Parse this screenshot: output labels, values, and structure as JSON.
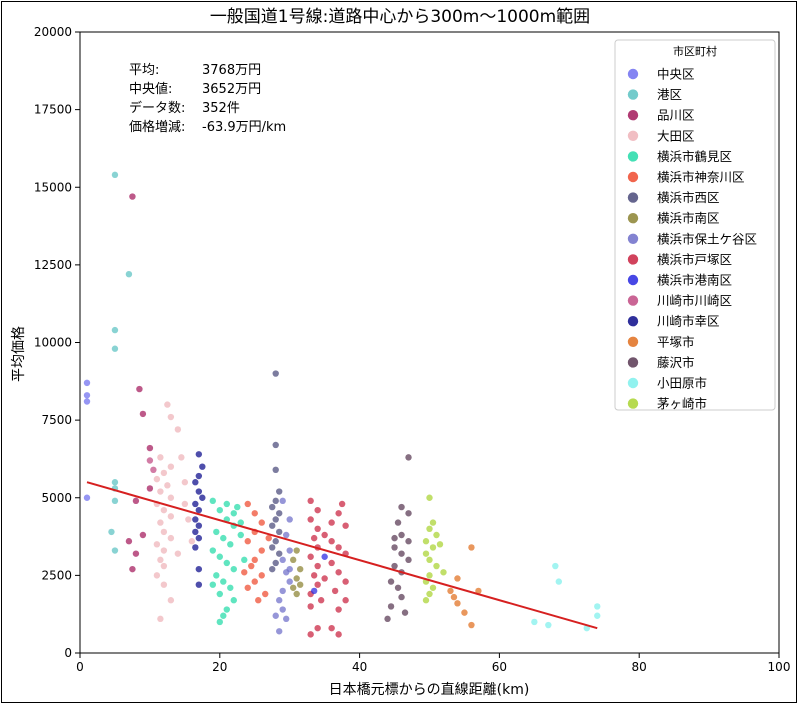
{
  "chart_data": {
    "type": "scatter",
    "title": "一般国道1号線:道路中心から300m～1000m範囲",
    "xlabel": "日本橋元標からの直線距離(km)",
    "ylabel": "平均価格",
    "xlim": [
      0,
      100
    ],
    "ylim": [
      0,
      20000
    ],
    "xticks": [
      0,
      20,
      40,
      60,
      80,
      100
    ],
    "yticks": [
      0,
      2500,
      5000,
      7500,
      10000,
      12500,
      15000,
      17500,
      20000
    ],
    "grid": false,
    "legend_title": "市区町村",
    "legend_position": "top-right",
    "stats": [
      {
        "label": "平均:",
        "value": "3768万円"
      },
      {
        "label": "中央値:",
        "value": "3652万円"
      },
      {
        "label": "データ数:",
        "value": "352件"
      },
      {
        "label": "価格増減:",
        "value": "-63.9万円/km"
      }
    ],
    "trendline": {
      "color": "#d62020",
      "x": [
        1,
        74
      ],
      "y": [
        5500,
        800
      ]
    },
    "series": [
      {
        "name": "中央区",
        "color": "#6e6ef0",
        "points": [
          [
            1,
            8700
          ],
          [
            1,
            8300
          ],
          [
            1,
            8100
          ],
          [
            1,
            5000
          ]
        ]
      },
      {
        "name": "港区",
        "color": "#5bc2c2",
        "points": [
          [
            5,
            15400
          ],
          [
            7,
            12200
          ],
          [
            5,
            10400
          ],
          [
            5,
            9800
          ],
          [
            5,
            5500
          ],
          [
            5,
            5300
          ],
          [
            5,
            4900
          ],
          [
            4.5,
            3900
          ],
          [
            5,
            3300
          ]
        ]
      },
      {
        "name": "品川区",
        "color": "#a3195b",
        "points": [
          [
            7.5,
            14700
          ],
          [
            8.5,
            8500
          ],
          [
            9,
            7700
          ],
          [
            10,
            6600
          ],
          [
            10,
            5300
          ],
          [
            8,
            4900
          ],
          [
            9,
            3800
          ],
          [
            7,
            3600
          ],
          [
            8,
            3200
          ],
          [
            7.5,
            2700
          ]
        ]
      },
      {
        "name": "大田区",
        "color": "#efb3b8",
        "points": [
          [
            12.5,
            8000
          ],
          [
            13,
            7600
          ],
          [
            14,
            7200
          ],
          [
            11.5,
            6300
          ],
          [
            13,
            6000
          ],
          [
            12,
            5800
          ],
          [
            11,
            5600
          ],
          [
            12.5,
            5400
          ],
          [
            11.5,
            5200
          ],
          [
            13,
            5000
          ],
          [
            11,
            4800
          ],
          [
            12,
            4600
          ],
          [
            13,
            4400
          ],
          [
            11.5,
            4200
          ],
          [
            12,
            3900
          ],
          [
            13,
            3700
          ],
          [
            11,
            3500
          ],
          [
            12,
            3300
          ],
          [
            11.5,
            3000
          ],
          [
            12,
            2800
          ],
          [
            11,
            2500
          ],
          [
            12,
            2200
          ],
          [
            13,
            1700
          ],
          [
            11.5,
            1100
          ],
          [
            15,
            4800
          ],
          [
            15.5,
            4300
          ],
          [
            16,
            3600
          ],
          [
            14,
            3200
          ],
          [
            15,
            5500
          ],
          [
            14.5,
            6300
          ]
        ]
      },
      {
        "name": "横浜市鶴見区",
        "color": "#23dba8",
        "points": [
          [
            19,
            4900
          ],
          [
            20,
            4600
          ],
          [
            21,
            4300
          ],
          [
            22,
            4100
          ],
          [
            19.5,
            3900
          ],
          [
            20.5,
            3700
          ],
          [
            21.5,
            3500
          ],
          [
            19,
            3300
          ],
          [
            20,
            3100
          ],
          [
            21,
            2900
          ],
          [
            22,
            2700
          ],
          [
            19.5,
            2500
          ],
          [
            20.5,
            2300
          ],
          [
            21.5,
            2100
          ],
          [
            20,
            1900
          ],
          [
            22,
            1700
          ],
          [
            21,
            1400
          ],
          [
            20.5,
            1200
          ],
          [
            20,
            1000
          ],
          [
            22.5,
            4700
          ],
          [
            23,
            4200
          ],
          [
            23,
            3800
          ],
          [
            23.5,
            3000
          ],
          [
            19,
            2200
          ],
          [
            21,
            4800
          ],
          [
            22,
            4500
          ]
        ]
      },
      {
        "name": "横浜市神奈川区",
        "color": "#ef4a2e",
        "points": [
          [
            24,
            4800
          ],
          [
            25,
            4500
          ],
          [
            26,
            4200
          ],
          [
            25,
            3900
          ],
          [
            24,
            3600
          ],
          [
            26,
            3300
          ],
          [
            25,
            3000
          ],
          [
            24.5,
            2800
          ],
          [
            26,
            2500
          ],
          [
            25,
            2300
          ],
          [
            24,
            2100
          ],
          [
            26.5,
            1900
          ],
          [
            25.5,
            1700
          ],
          [
            27,
            3700
          ],
          [
            23.5,
            2600
          ]
        ]
      },
      {
        "name": "横浜市西区",
        "color": "#4a4a7a",
        "points": [
          [
            28,
            9000
          ],
          [
            28,
            6700
          ],
          [
            28,
            5900
          ],
          [
            28.5,
            5200
          ],
          [
            28,
            4900
          ],
          [
            27.5,
            4700
          ],
          [
            28.5,
            4500
          ],
          [
            28,
            4300
          ],
          [
            27.5,
            4100
          ],
          [
            28.5,
            3900
          ],
          [
            28,
            3600
          ],
          [
            27.5,
            3400
          ],
          [
            28.5,
            3200
          ],
          [
            28,
            2900
          ],
          [
            27.5,
            2700
          ]
        ]
      },
      {
        "name": "横浜市南区",
        "color": "#8b8231",
        "points": [
          [
            31,
            3300
          ],
          [
            30.5,
            3000
          ],
          [
            31.5,
            2700
          ],
          [
            31,
            2400
          ],
          [
            30.5,
            2100
          ],
          [
            31,
            1900
          ],
          [
            31.5,
            2200
          ]
        ]
      },
      {
        "name": "横浜市保土ケ谷区",
        "color": "#6d6dc9",
        "points": [
          [
            29,
            4900
          ],
          [
            30,
            4300
          ],
          [
            29.5,
            3800
          ],
          [
            30,
            3300
          ],
          [
            29,
            3000
          ],
          [
            29.5,
            2600
          ],
          [
            30,
            2300
          ],
          [
            29,
            2000
          ],
          [
            28.5,
            1700
          ],
          [
            29,
            1400
          ],
          [
            28,
            1200
          ],
          [
            29.5,
            1100
          ],
          [
            28.5,
            700
          ],
          [
            30,
            2700
          ]
        ]
      },
      {
        "name": "横浜市戸塚区",
        "color": "#c9213f",
        "points": [
          [
            33,
            4900
          ],
          [
            34,
            4600
          ],
          [
            33,
            4300
          ],
          [
            34,
            4000
          ],
          [
            33.5,
            3700
          ],
          [
            34,
            3400
          ],
          [
            33,
            3100
          ],
          [
            34,
            2800
          ],
          [
            33.5,
            2500
          ],
          [
            34,
            2200
          ],
          [
            33,
            1900
          ],
          [
            34.5,
            1700
          ],
          [
            33,
            1500
          ],
          [
            34,
            800
          ],
          [
            33,
            600
          ],
          [
            36,
            4200
          ],
          [
            37,
            4500
          ],
          [
            37.5,
            4800
          ],
          [
            38,
            4100
          ],
          [
            36,
            3600
          ],
          [
            37,
            3400
          ],
          [
            38,
            3200
          ],
          [
            36,
            2900
          ],
          [
            37,
            2600
          ],
          [
            38,
            2300
          ],
          [
            36.5,
            2000
          ],
          [
            38,
            1700
          ],
          [
            37,
            1400
          ],
          [
            36,
            800
          ],
          [
            37,
            600
          ],
          [
            35,
            3800
          ],
          [
            35,
            2400
          ]
        ]
      },
      {
        "name": "横浜市港南区",
        "color": "#2727e0",
        "points": [
          [
            35,
            3100
          ],
          [
            33.5,
            2000
          ]
        ]
      },
      {
        "name": "川崎市川崎区",
        "color": "#c14a82",
        "points": [
          [
            10,
            6200
          ],
          [
            10.5,
            5900
          ]
        ]
      },
      {
        "name": "川崎市幸区",
        "color": "#0a0a8a",
        "points": [
          [
            17,
            6400
          ],
          [
            17.5,
            6000
          ],
          [
            17,
            5700
          ],
          [
            16.5,
            5500
          ],
          [
            17,
            5200
          ],
          [
            17.5,
            5000
          ],
          [
            16.5,
            4800
          ],
          [
            17,
            4600
          ],
          [
            16.5,
            4300
          ],
          [
            17,
            4100
          ],
          [
            16.5,
            3900
          ],
          [
            17,
            3700
          ],
          [
            16.5,
            3400
          ],
          [
            17,
            2700
          ],
          [
            17,
            2200
          ]
        ]
      },
      {
        "name": "平塚市",
        "color": "#e06f1f",
        "points": [
          [
            56,
            3400
          ],
          [
            54,
            2400
          ],
          [
            53,
            2000
          ],
          [
            53.5,
            1800
          ],
          [
            54,
            1600
          ],
          [
            55,
            1300
          ],
          [
            56,
            900
          ],
          [
            57,
            2000
          ]
        ]
      },
      {
        "name": "藤沢市",
        "color": "#583752",
        "points": [
          [
            47,
            6300
          ],
          [
            46,
            4700
          ],
          [
            47,
            4500
          ],
          [
            45.5,
            4200
          ],
          [
            46,
            3800
          ],
          [
            47,
            3600
          ],
          [
            45,
            3400
          ],
          [
            46,
            3200
          ],
          [
            47,
            3000
          ],
          [
            45,
            2800
          ],
          [
            46,
            2600
          ],
          [
            44.5,
            2300
          ],
          [
            45.5,
            2100
          ],
          [
            46,
            1800
          ],
          [
            44.5,
            1500
          ],
          [
            46.5,
            1300
          ],
          [
            44,
            1100
          ],
          [
            45,
            3700
          ]
        ]
      },
      {
        "name": "小田原市",
        "color": "#7ef0ec",
        "points": [
          [
            68,
            2800
          ],
          [
            68.5,
            2300
          ],
          [
            74,
            1500
          ],
          [
            74,
            1200
          ],
          [
            65,
            1000
          ],
          [
            67,
            900
          ],
          [
            72.5,
            800
          ]
        ]
      },
      {
        "name": "茅ヶ崎市",
        "color": "#a9d331",
        "points": [
          [
            50,
            5000
          ],
          [
            50.5,
            4200
          ],
          [
            50,
            4000
          ],
          [
            51,
            3800
          ],
          [
            49.5,
            3600
          ],
          [
            50.5,
            3400
          ],
          [
            49.5,
            3200
          ],
          [
            50,
            3000
          ],
          [
            51,
            2800
          ],
          [
            50,
            2500
          ],
          [
            49.5,
            2300
          ],
          [
            50.5,
            2100
          ],
          [
            50,
            1900
          ],
          [
            49.5,
            1700
          ],
          [
            51.5,
            3500
          ],
          [
            52,
            2600
          ]
        ]
      }
    ]
  }
}
